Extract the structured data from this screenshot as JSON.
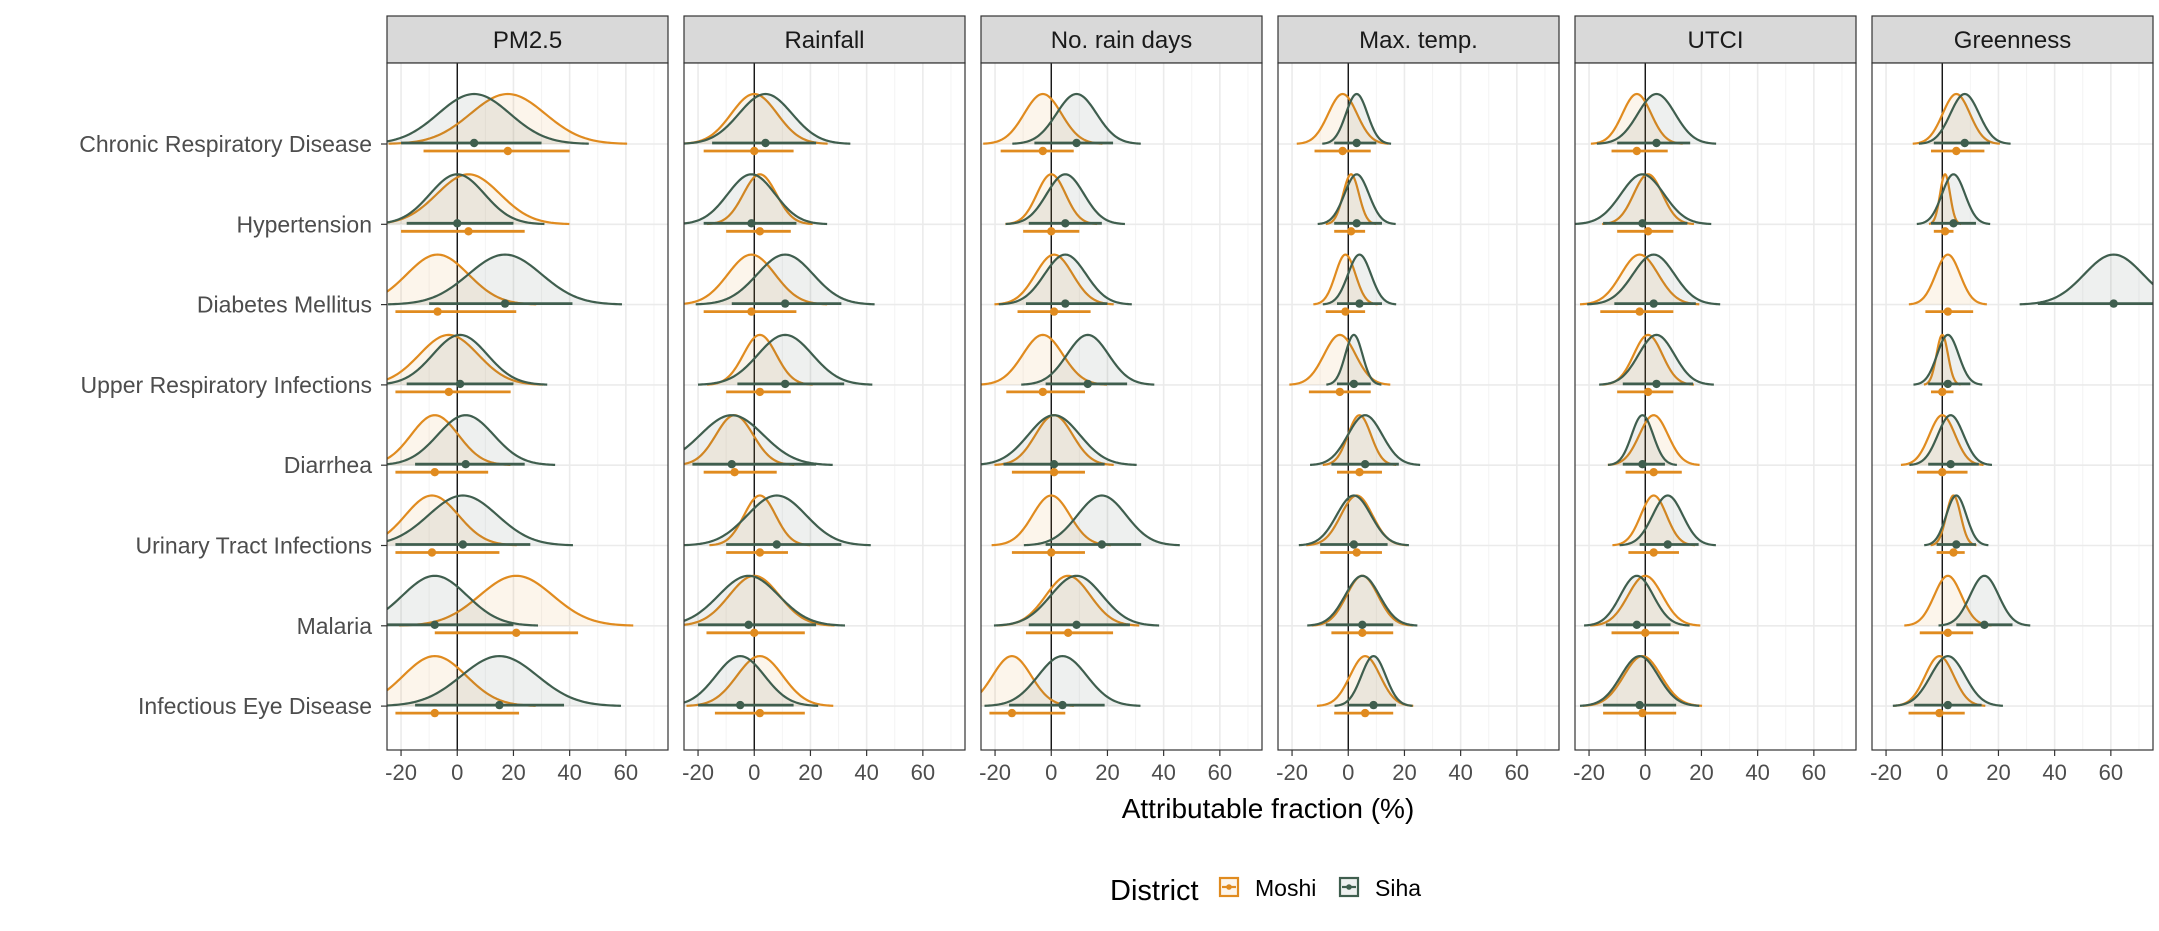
{
  "chart_data": {
    "type": "ridgeline-density-faceted",
    "xlabel": "Attributable fraction (%)",
    "xlim": [
      -25,
      75
    ],
    "x_ticks": [
      -20,
      0,
      20,
      40,
      60
    ],
    "x_tick_labels": [
      "-20",
      "0",
      "20",
      "40",
      "60"
    ],
    "grid": true,
    "legend_position": "bottom",
    "legend": {
      "title": "District",
      "entries": [
        {
          "key": "moshi",
          "label": "Moshi",
          "color": "#E08B1F"
        },
        {
          "key": "siha",
          "label": "Siha",
          "color": "#3F5E4E"
        }
      ]
    },
    "panels": [
      "PM2.5",
      "Rainfall",
      "No. rain days",
      "Max. temp.",
      "UTCI",
      "Greenness"
    ],
    "outcomes": [
      "Chronic Respiratory Disease",
      "Hypertension",
      "Diabetes Mellitus",
      "Upper Respiratory Infections",
      "Diarrhea",
      "Urinary Tract Infections",
      "Malaria",
      "Infectious Eye Disease"
    ],
    "estimates": {
      "moshi": [
        [
          [
            18,
            -12,
            40
          ],
          [
            0,
            -18,
            14
          ],
          [
            -3,
            -18,
            8
          ],
          [
            -2,
            -12,
            8
          ],
          [
            -3,
            -12,
            8
          ],
          [
            5,
            -4,
            15
          ]
        ],
        [
          [
            4,
            -20,
            24
          ],
          [
            2,
            -10,
            13
          ],
          [
            0,
            -10,
            10
          ],
          [
            1,
            -5,
            6
          ],
          [
            1,
            -10,
            10
          ],
          [
            1,
            -3,
            4
          ]
        ],
        [
          [
            -7,
            -22,
            21
          ],
          [
            -1,
            -18,
            15
          ],
          [
            1,
            -12,
            14
          ],
          [
            -1,
            -8,
            6
          ],
          [
            -2,
            -16,
            10
          ],
          [
            2,
            -6,
            11
          ]
        ],
        [
          [
            -3,
            -22,
            19
          ],
          [
            2,
            -10,
            13
          ],
          [
            -3,
            -16,
            12
          ],
          [
            -3,
            -14,
            8
          ],
          [
            1,
            -10,
            10
          ],
          [
            0,
            -4,
            4
          ]
        ],
        [
          [
            -8,
            -22,
            11
          ],
          [
            -7,
            -18,
            8
          ],
          [
            1,
            -14,
            12
          ],
          [
            4,
            -4,
            12
          ],
          [
            3,
            -7,
            13
          ],
          [
            0,
            -9,
            9
          ]
        ],
        [
          [
            -9,
            -22,
            15
          ],
          [
            2,
            -10,
            12
          ],
          [
            0,
            -14,
            12
          ],
          [
            3,
            -10,
            12
          ],
          [
            3,
            -6,
            12
          ],
          [
            4,
            -2,
            8
          ]
        ],
        [
          [
            21,
            -8,
            43
          ],
          [
            0,
            -17,
            18
          ],
          [
            6,
            -9,
            22
          ],
          [
            5,
            -6,
            16
          ],
          [
            0,
            -12,
            12
          ],
          [
            2,
            -8,
            11
          ]
        ],
        [
          [
            -8,
            -22,
            22
          ],
          [
            2,
            -14,
            18
          ],
          [
            -14,
            -22,
            5
          ],
          [
            6,
            -5,
            16
          ],
          [
            -1,
            -15,
            11
          ],
          [
            -1,
            -12,
            8
          ]
        ]
      ],
      "siha": [
        [
          [
            6,
            -20,
            30
          ],
          [
            4,
            -15,
            22
          ],
          [
            9,
            -6,
            22
          ],
          [
            3,
            -5,
            10
          ],
          [
            4,
            -10,
            16
          ],
          [
            8,
            -3,
            17
          ]
        ],
        [
          [
            0,
            -18,
            20
          ],
          [
            -1,
            -18,
            15
          ],
          [
            5,
            -8,
            18
          ],
          [
            3,
            -5,
            12
          ],
          [
            -1,
            -15,
            15
          ],
          [
            4,
            -4,
            12
          ]
        ],
        [
          [
            17,
            -10,
            41
          ],
          [
            11,
            -8,
            31
          ],
          [
            5,
            -9,
            20
          ],
          [
            4,
            -4,
            12
          ],
          [
            3,
            -11,
            18
          ],
          [
            61,
            34,
            75
          ]
        ],
        [
          [
            1,
            -18,
            20
          ],
          [
            11,
            -6,
            32
          ],
          [
            13,
            -2,
            27
          ],
          [
            2,
            -4,
            8
          ],
          [
            4,
            -8,
            17
          ],
          [
            2,
            -5,
            10
          ]
        ],
        [
          [
            3,
            -15,
            24
          ],
          [
            -8,
            -22,
            22
          ],
          [
            1,
            -17,
            19
          ],
          [
            6,
            -6,
            18
          ],
          [
            -1,
            -8,
            7
          ],
          [
            3,
            -5,
            13
          ]
        ],
        [
          [
            2,
            -22,
            26
          ],
          [
            8,
            -10,
            31
          ],
          [
            18,
            -2,
            32
          ],
          [
            2,
            -10,
            14
          ],
          [
            8,
            -2,
            19
          ],
          [
            5,
            -2,
            12
          ]
        ],
        [
          [
            -8,
            -25,
            20
          ],
          [
            -2,
            -20,
            22
          ],
          [
            9,
            -8,
            28
          ],
          [
            5,
            -8,
            16
          ],
          [
            -3,
            -14,
            9
          ],
          [
            15,
            5,
            25
          ]
        ],
        [
          [
            15,
            -15,
            38
          ],
          [
            -5,
            -20,
            14
          ],
          [
            4,
            -15,
            19
          ],
          [
            9,
            0,
            17
          ],
          [
            -2,
            -15,
            11
          ],
          [
            2,
            -10,
            14
          ]
        ]
      ]
    }
  }
}
